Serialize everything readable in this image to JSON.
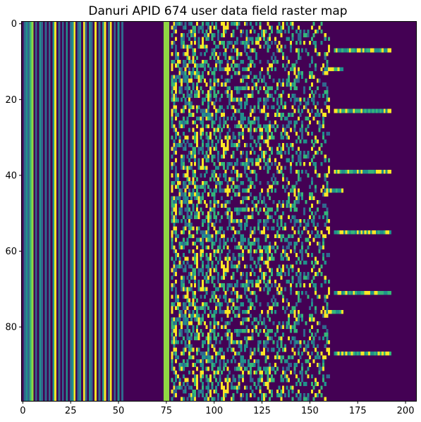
{
  "chart_data": {
    "type": "heatmap",
    "title": "Danuri APID 674 user data field raster map",
    "xlabel": "",
    "ylabel": "",
    "xlim": [
      -0.5,
      205.5
    ],
    "ylim": [
      99.5,
      -0.5
    ],
    "n_columns": 206,
    "n_rows": 100,
    "x_ticks": [
      0,
      25,
      50,
      75,
      100,
      125,
      150,
      175,
      200
    ],
    "y_ticks": [
      0,
      20,
      40,
      60,
      80
    ],
    "colormap": "viridis",
    "value_range": [
      0,
      255
    ],
    "palette": {
      "dark": "#440154",
      "blue": "#31688e",
      "teal": "#21918c",
      "green": "#35b779",
      "lime": "#90d743",
      "yellow": "#fde725"
    },
    "constant_columns": [
      {
        "col": 0,
        "color": "dark"
      },
      {
        "col": 1,
        "color": "blue"
      },
      {
        "col": 2,
        "color": "teal"
      },
      {
        "col": 3,
        "color": "blue"
      },
      {
        "col": 4,
        "color": "green"
      },
      {
        "col": 5,
        "color": "lime"
      },
      {
        "col": 6,
        "color": "dark"
      },
      {
        "col": 7,
        "color": "blue"
      },
      {
        "col": 8,
        "color": "dark"
      },
      {
        "col": 9,
        "color": "teal"
      },
      {
        "col": 10,
        "color": "blue"
      },
      {
        "col": 11,
        "color": "dark"
      },
      {
        "col": 12,
        "color": "blue"
      },
      {
        "col": 13,
        "color": "dark"
      },
      {
        "col": 14,
        "color": "blue"
      },
      {
        "col": 15,
        "color": "dark"
      },
      {
        "col": 16,
        "color": "teal"
      },
      {
        "col": 17,
        "color": "yellow"
      },
      {
        "col": 18,
        "color": "dark"
      },
      {
        "col": 19,
        "color": "blue"
      },
      {
        "col": 20,
        "color": "dark"
      },
      {
        "col": 21,
        "color": "blue"
      },
      {
        "col": 22,
        "color": "dark"
      },
      {
        "col": 23,
        "color": "teal"
      },
      {
        "col": 24,
        "color": "dark"
      },
      {
        "col": 25,
        "color": "blue"
      },
      {
        "col": 26,
        "color": "teal"
      },
      {
        "col": 27,
        "color": "yellow"
      },
      {
        "col": 28,
        "color": "dark"
      },
      {
        "col": 29,
        "color": "blue"
      },
      {
        "col": 30,
        "color": "teal"
      },
      {
        "col": 31,
        "color": "dark"
      },
      {
        "col": 32,
        "color": "yellow"
      },
      {
        "col": 33,
        "color": "blue"
      },
      {
        "col": 34,
        "color": "dark"
      },
      {
        "col": 35,
        "color": "teal"
      },
      {
        "col": 36,
        "color": "blue"
      },
      {
        "col": 37,
        "color": "dark"
      },
      {
        "col": 38,
        "color": "yellow"
      },
      {
        "col": 39,
        "color": "dark"
      },
      {
        "col": 40,
        "color": "blue"
      },
      {
        "col": 41,
        "color": "dark"
      },
      {
        "col": 42,
        "color": "teal"
      },
      {
        "col": 43,
        "color": "yellow"
      },
      {
        "col": 44,
        "color": "dark"
      },
      {
        "col": 45,
        "color": "blue"
      },
      {
        "col": 46,
        "color": "yellow"
      },
      {
        "col": 47,
        "color": "dark"
      },
      {
        "col": 48,
        "color": "blue"
      },
      {
        "col": 49,
        "color": "dark"
      },
      {
        "col": 50,
        "color": "teal"
      },
      {
        "col": 51,
        "color": "dark"
      },
      {
        "col": 52,
        "color": "blue"
      },
      {
        "col": 53,
        "color": "dark"
      },
      {
        "col": 74,
        "color": "lime"
      },
      {
        "col": 75,
        "color": "lime"
      },
      {
        "col": 76,
        "color": "lime"
      }
    ],
    "pattern_region": {
      "col_start": 78,
      "col_end": 160,
      "period_rows": 32
    },
    "bursts": [
      {
        "row": 7,
        "col_start": 163,
        "col_end": 192
      },
      {
        "row": 12,
        "col_start": 158,
        "col_end": 167
      },
      {
        "row": 23,
        "col_start": 163,
        "col_end": 192
      },
      {
        "row": 39,
        "col_start": 163,
        "col_end": 192
      },
      {
        "row": 44,
        "col_start": 158,
        "col_end": 167
      },
      {
        "row": 55,
        "col_start": 163,
        "col_end": 192
      },
      {
        "row": 71,
        "col_start": 163,
        "col_end": 192
      },
      {
        "row": 76,
        "col_start": 158,
        "col_end": 167
      },
      {
        "row": 87,
        "col_start": 163,
        "col_end": 192
      }
    ],
    "grid": false,
    "legend": "none"
  }
}
